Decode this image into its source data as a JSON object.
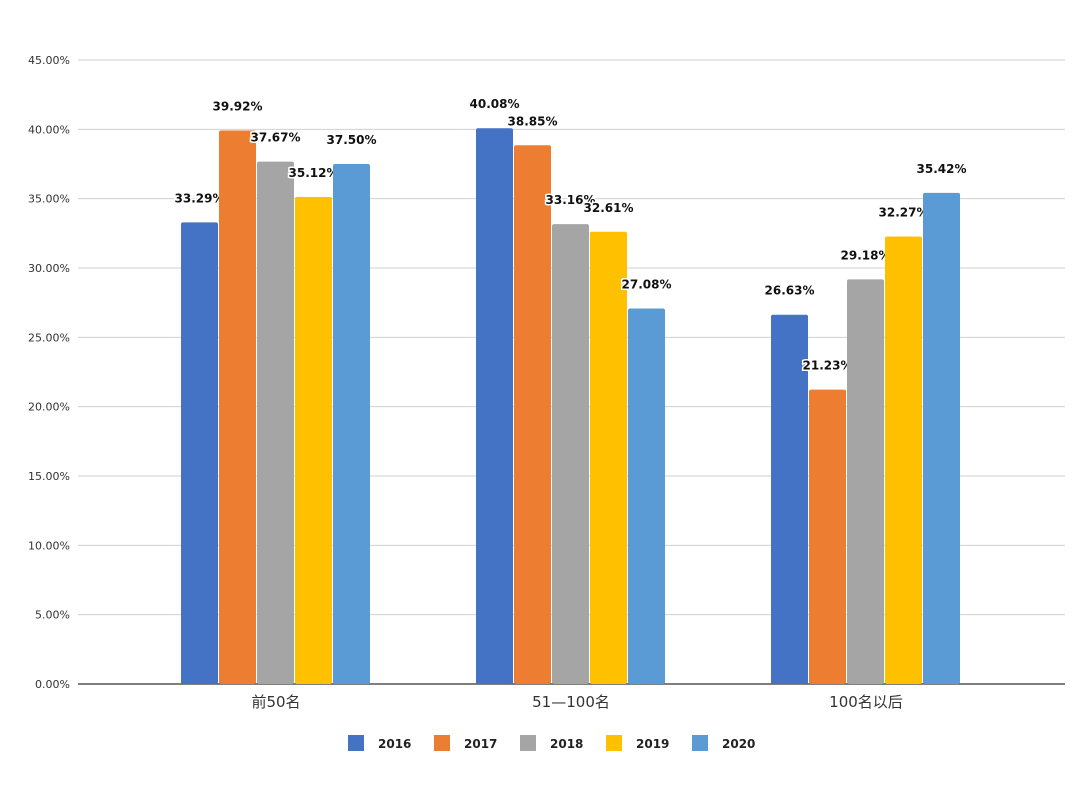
{
  "chart_data": {
    "type": "bar",
    "title": "",
    "xlabel": "",
    "ylabel": "",
    "categories": [
      "前50名",
      "51—100名",
      "100名以后"
    ],
    "series": [
      {
        "name": "2016",
        "color": "#4472C4",
        "values": [
          33.29,
          40.08,
          26.63
        ]
      },
      {
        "name": "2017",
        "color": "#ED7D31",
        "values": [
          39.92,
          38.85,
          21.23
        ]
      },
      {
        "name": "2018",
        "color": "#A5A5A5",
        "values": [
          37.67,
          33.16,
          29.18
        ]
      },
      {
        "name": "2019",
        "color": "#FFC000",
        "values": [
          35.12,
          32.61,
          32.27
        ]
      },
      {
        "name": "2020",
        "color": "#5B9BD5",
        "values": [
          37.5,
          27.08,
          35.42
        ]
      }
    ],
    "ylim": [
      0,
      45
    ],
    "yticks": [
      "0.00%",
      "5.00%",
      "10.00%",
      "15.00%",
      "20.00%",
      "25.00%",
      "30.00%",
      "35.00%",
      "40.00%",
      "45.00%"
    ],
    "ytick_values": [
      0,
      5,
      10,
      15,
      20,
      25,
      30,
      35,
      40,
      45
    ],
    "grid": true,
    "legend": "bottom",
    "data_label_suffix": "%"
  }
}
